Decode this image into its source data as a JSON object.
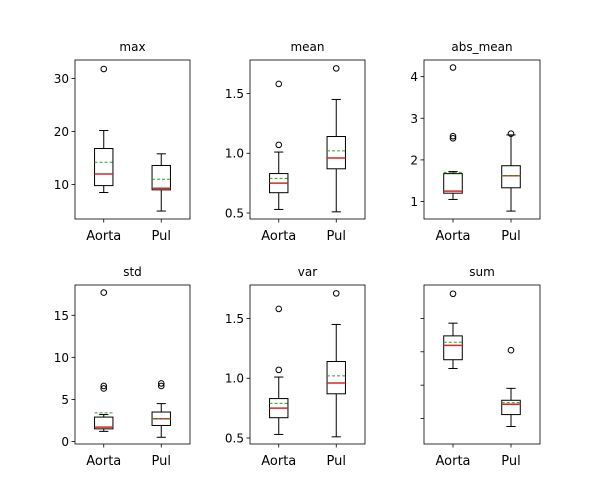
{
  "chart_data": [
    {
      "type": "boxplot",
      "title": "max",
      "categories": [
        "Aorta",
        "Pul"
      ],
      "ylim": [
        3.5,
        33.5
      ],
      "yticks": [
        10,
        20,
        30
      ],
      "ytick_labels": [
        "10",
        "20",
        "30"
      ],
      "series": [
        {
          "category": "Aorta",
          "whisker_low": 8.5,
          "q1": 9.8,
          "median": 12.0,
          "mean": 14.2,
          "q3": 16.8,
          "whisker_high": 20.2,
          "outliers": [
            31.8
          ]
        },
        {
          "category": "Pul",
          "whisker_low": 5.0,
          "q1": 9.0,
          "median": 9.3,
          "mean": 11.0,
          "q3": 13.6,
          "whisker_high": 15.8,
          "outliers": []
        }
      ]
    },
    {
      "type": "boxplot",
      "title": "mean",
      "categories": [
        "Aorta",
        "Pul"
      ],
      "ylim": [
        0.45,
        1.78
      ],
      "yticks": [
        0.5,
        1.0,
        1.5
      ],
      "ytick_labels": [
        "0.5",
        "1.0",
        "1.5"
      ],
      "series": [
        {
          "category": "Aorta",
          "whisker_low": 0.53,
          "q1": 0.67,
          "median": 0.75,
          "mean": 0.79,
          "q3": 0.83,
          "whisker_high": 1.01,
          "outliers": [
            1.07,
            1.58
          ]
        },
        {
          "category": "Pul",
          "whisker_low": 0.51,
          "q1": 0.87,
          "median": 0.96,
          "mean": 1.02,
          "q3": 1.14,
          "whisker_high": 1.45,
          "outliers": [
            1.71
          ]
        }
      ]
    },
    {
      "type": "boxplot",
      "title": "abs_mean",
      "categories": [
        "Aorta",
        "Pul"
      ],
      "ylim": [
        0.58,
        4.4
      ],
      "yticks": [
        1,
        2,
        3,
        4
      ],
      "ytick_labels": [
        "1",
        "2",
        "3",
        "4"
      ],
      "series": [
        {
          "category": "Aorta",
          "whisker_low": 1.05,
          "q1": 1.2,
          "median": 1.25,
          "mean": 1.7,
          "q3": 1.67,
          "whisker_high": 1.72,
          "outliers": [
            2.52,
            2.57,
            4.22
          ]
        },
        {
          "category": "Pul",
          "whisker_low": 0.77,
          "q1": 1.33,
          "median": 1.62,
          "mean": 1.62,
          "q3": 1.86,
          "whisker_high": 2.6,
          "outliers": [
            2.63
          ]
        }
      ]
    },
    {
      "type": "boxplot",
      "title": "std",
      "categories": [
        "Aorta",
        "Pul"
      ],
      "ylim": [
        -0.3,
        18.6
      ],
      "yticks": [
        0,
        5,
        10,
        15
      ],
      "ytick_labels": [
        "0",
        "5",
        "10",
        "15"
      ],
      "series": [
        {
          "category": "Aorta",
          "whisker_low": 1.2,
          "q1": 1.5,
          "median": 1.7,
          "mean": 3.4,
          "q3": 2.9,
          "whisker_high": 3.2,
          "outliers": [
            6.3,
            6.6,
            17.7
          ]
        },
        {
          "category": "Pul",
          "whisker_low": 0.5,
          "q1": 1.9,
          "median": 2.7,
          "mean": 2.7,
          "q3": 3.5,
          "whisker_high": 4.5,
          "outliers": [
            6.6,
            6.9
          ]
        }
      ]
    },
    {
      "type": "boxplot",
      "title": "var",
      "categories": [
        "Aorta",
        "Pul"
      ],
      "ylim": [
        0.45,
        1.78
      ],
      "yticks": [
        0.5,
        1.0,
        1.5
      ],
      "ytick_labels": [
        "0.5",
        "1.0",
        "1.5"
      ],
      "series": [
        {
          "category": "Aorta",
          "whisker_low": 0.53,
          "q1": 0.67,
          "median": 0.75,
          "mean": 0.79,
          "q3": 0.83,
          "whisker_high": 1.01,
          "outliers": [
            1.07,
            1.58
          ]
        },
        {
          "category": "Pul",
          "whisker_low": 0.51,
          "q1": 0.87,
          "median": 0.96,
          "mean": 1.02,
          "q3": 1.14,
          "whisker_high": 1.45,
          "outliers": [
            1.71
          ]
        }
      ]
    },
    {
      "type": "boxplot",
      "title": "sum",
      "categories": [
        "Aorta",
        "Pul"
      ],
      "ylim": [
        0,
        100
      ],
      "yticks": [
        16,
        37,
        58,
        79
      ],
      "ytick_labels": [
        "",
        "",
        "",
        ""
      ],
      "series": [
        {
          "category": "Aorta",
          "whisker_low": 47.5,
          "q1": 53,
          "median": 62,
          "mean": 64,
          "q3": 68,
          "whisker_high": 76,
          "outliers": [
            94.5
          ]
        },
        {
          "category": "Pul",
          "whisker_low": 11,
          "q1": 18.5,
          "median": 25,
          "mean": 26,
          "q3": 27.5,
          "whisker_high": 35,
          "outliers": [
            59
          ]
        }
      ]
    }
  ]
}
